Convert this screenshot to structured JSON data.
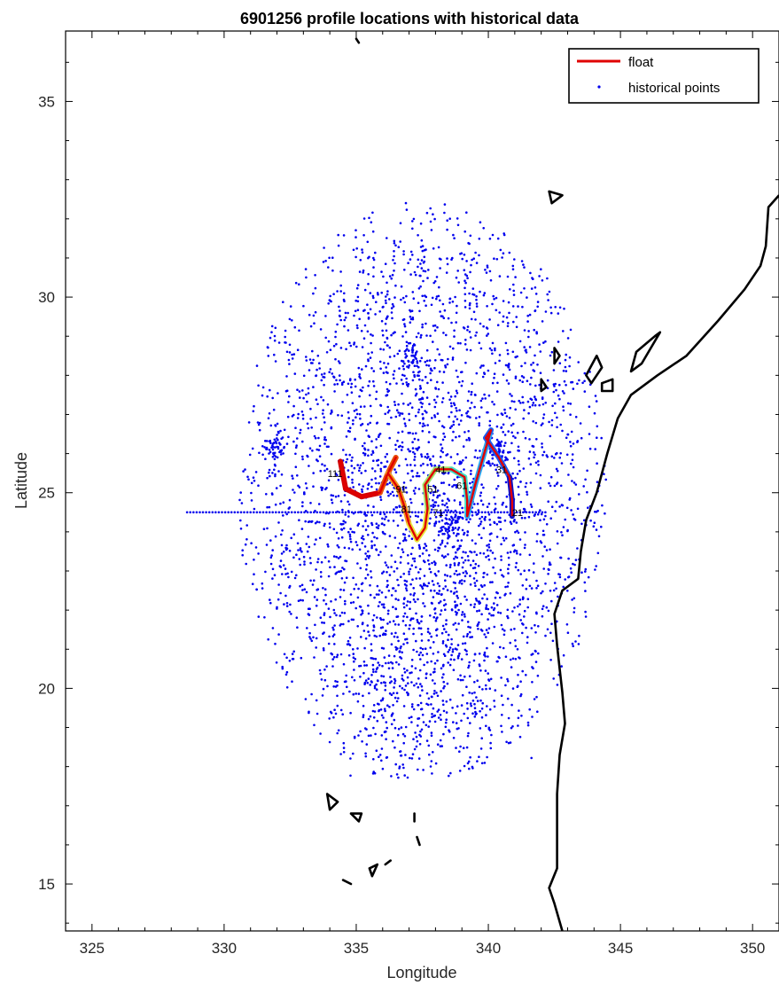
{
  "chart_data": {
    "type": "scatter",
    "title": "6901256 profile locations with historical data",
    "xlabel": "Longitude",
    "ylabel": "Latitude",
    "xlim": [
      324,
      351
    ],
    "ylim": [
      13.8,
      36.8
    ],
    "xticks": [
      325,
      330,
      335,
      340,
      345,
      350
    ],
    "yticks": [
      15,
      20,
      25,
      30,
      35
    ],
    "grid": false,
    "legend": {
      "location": "top-right",
      "entries": [
        "float",
        "historical points"
      ]
    },
    "colors": {
      "float": "#e00000",
      "historical": "#0000ee",
      "coast": "#000000"
    },
    "historical_cloud": {
      "center": [
        337.5,
        25.0
      ],
      "lon_range": [
        330.5,
        344.5
      ],
      "lat_range": [
        17.7,
        32.6
      ],
      "clusters": [
        [
          337.1,
          28.4
        ],
        [
          331.9,
          26.2
        ],
        [
          340.3,
          26.0
        ],
        [
          338.6,
          24.2
        ]
      ],
      "band_lat": 24.5,
      "band_lon_range": [
        328.6,
        342.2
      ]
    },
    "float_track": [
      [
        334.4,
        25.8
      ],
      [
        334.6,
        25.1
      ],
      [
        335.2,
        24.9
      ],
      [
        335.9,
        25.0
      ],
      [
        336.2,
        25.5
      ],
      [
        336.5,
        25.9
      ],
      [
        336.2,
        25.5
      ],
      [
        336.6,
        25.1
      ],
      [
        336.8,
        24.7
      ],
      [
        337.0,
        24.2
      ],
      [
        337.3,
        23.8
      ],
      [
        337.6,
        24.1
      ],
      [
        337.7,
        24.6
      ],
      [
        337.6,
        25.2
      ],
      [
        338.0,
        25.6
      ],
      [
        338.6,
        25.6
      ],
      [
        339.1,
        25.4
      ],
      [
        339.2,
        24.8
      ],
      [
        339.2,
        24.4
      ],
      [
        339.5,
        25.2
      ],
      [
        339.8,
        25.9
      ],
      [
        340.1,
        26.6
      ],
      [
        339.9,
        26.4
      ],
      [
        340.4,
        25.9
      ],
      [
        340.8,
        25.4
      ],
      [
        340.9,
        24.8
      ],
      [
        340.9,
        24.4
      ]
    ],
    "profile_labels": [
      {
        "text": "111",
        "lon": 334.2,
        "lat": 25.4
      },
      {
        "text": "91",
        "lon": 336.7,
        "lat": 25.0
      },
      {
        "text": "81",
        "lon": 336.9,
        "lat": 24.5
      },
      {
        "text": "71",
        "lon": 338.1,
        "lat": 24.4
      },
      {
        "text": "51",
        "lon": 337.9,
        "lat": 25.0
      },
      {
        "text": "41",
        "lon": 338.2,
        "lat": 25.5
      },
      {
        "text": "61",
        "lon": 339.0,
        "lat": 25.1
      },
      {
        "text": "31",
        "lon": 340.5,
        "lat": 25.5
      },
      {
        "text": "21",
        "lon": 341.1,
        "lat": 24.4
      }
    ],
    "coastline": [
      [
        351,
        32.6
      ],
      [
        350.6,
        32.3
      ],
      [
        350.5,
        31.3
      ],
      [
        350.3,
        30.8
      ],
      [
        349.7,
        30.2
      ],
      [
        348.7,
        29.4
      ],
      [
        347.5,
        28.5
      ],
      [
        346.4,
        28.0
      ],
      [
        345.4,
        27.5
      ],
      [
        344.9,
        26.9
      ],
      [
        344.5,
        26.0
      ],
      [
        344.1,
        25.0
      ],
      [
        343.7,
        24.3
      ],
      [
        343.5,
        23.5
      ],
      [
        343.4,
        22.8
      ],
      [
        342.8,
        22.5
      ],
      [
        342.5,
        21.9
      ],
      [
        342.6,
        21.1
      ],
      [
        342.7,
        20.5
      ],
      [
        342.8,
        19.9
      ],
      [
        342.9,
        19.1
      ],
      [
        342.7,
        18.3
      ],
      [
        342.6,
        17.3
      ],
      [
        342.6,
        16.2
      ],
      [
        342.6,
        15.4
      ],
      [
        342.3,
        14.9
      ],
      [
        342.5,
        14.5
      ],
      [
        342.8,
        13.8
      ]
    ],
    "islands": [
      [
        [
          345.6,
          28.6
        ],
        [
          346.3,
          29.0
        ],
        [
          346.5,
          29.1
        ],
        [
          345.8,
          28.3
        ],
        [
          345.4,
          28.1
        ],
        [
          345.6,
          28.6
        ]
      ],
      [
        [
          343.7,
          28.0
        ],
        [
          344.1,
          28.5
        ],
        [
          344.3,
          28.2
        ],
        [
          343.9,
          27.8
        ],
        [
          343.7,
          28.0
        ]
      ],
      [
        [
          344.3,
          27.8
        ],
        [
          344.7,
          27.9
        ],
        [
          344.7,
          27.6
        ],
        [
          344.3,
          27.6
        ],
        [
          344.3,
          27.8
        ]
      ],
      [
        [
          342.3,
          32.7
        ],
        [
          342.8,
          32.6
        ],
        [
          342.4,
          32.4
        ],
        [
          342.3,
          32.7
        ]
      ],
      [
        [
          342.5,
          28.7
        ],
        [
          342.7,
          28.5
        ],
        [
          342.5,
          28.3
        ],
        [
          342.5,
          28.7
        ]
      ],
      [
        [
          342.0,
          27.9
        ],
        [
          342.2,
          27.7
        ],
        [
          342.0,
          27.6
        ],
        [
          342.0,
          27.9
        ]
      ],
      [
        [
          333.9,
          17.3
        ],
        [
          334.3,
          17.1
        ],
        [
          334.0,
          16.9
        ],
        [
          333.9,
          17.3
        ]
      ],
      [
        [
          334.8,
          16.8
        ],
        [
          335.2,
          16.8
        ],
        [
          335.1,
          16.6
        ],
        [
          334.8,
          16.8
        ]
      ],
      [
        [
          337.2,
          16.8
        ],
        [
          337.2,
          16.6
        ]
      ],
      [
        [
          337.3,
          16.2
        ],
        [
          337.4,
          16.0
        ]
      ],
      [
        [
          335.5,
          15.4
        ],
        [
          335.8,
          15.5
        ],
        [
          335.6,
          15.2
        ],
        [
          335.5,
          15.4
        ]
      ],
      [
        [
          334.5,
          15.1
        ],
        [
          334.8,
          15.0
        ]
      ],
      [
        [
          336.1,
          15.5
        ],
        [
          336.3,
          15.6
        ]
      ],
      [
        [
          335.0,
          36.6
        ],
        [
          335.1,
          36.5
        ]
      ]
    ]
  }
}
